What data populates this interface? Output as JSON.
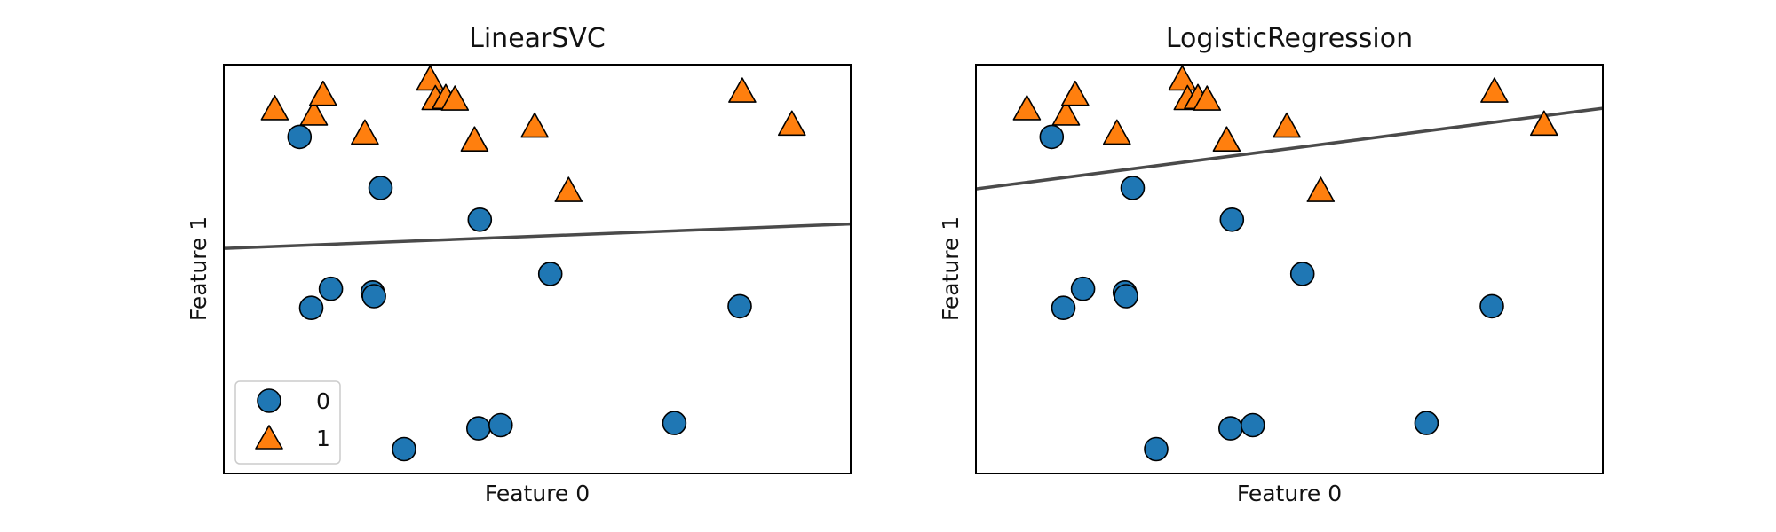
{
  "chart_data": [
    {
      "type": "scatter",
      "title": "LinearSVC",
      "xlabel": "Feature 0",
      "ylabel": "Feature 1",
      "xlim": [
        7.6,
        12.4
      ],
      "ylim": [
        -1.4,
        6.3
      ],
      "show_ticks": false,
      "grid": false,
      "decision_boundary": {
        "color": "#4a4a4a",
        "points": [
          [
            7.6,
            2.84
          ],
          [
            12.4,
            3.3
          ]
        ]
      },
      "legend": {
        "placement": "lower-left",
        "show": true
      },
      "series": [
        {
          "name": "0",
          "marker": "circle",
          "color": "#1f77b4",
          "points": [
            [
              8.18,
              4.94
            ],
            [
              8.27,
              1.72
            ],
            [
              8.42,
              2.08
            ],
            [
              8.74,
              2.01
            ],
            [
              8.75,
              1.94
            ],
            [
              8.8,
              3.98
            ],
            [
              8.98,
              -0.94
            ],
            [
              9.55,
              -0.55
            ],
            [
              9.56,
              3.38
            ],
            [
              9.72,
              -0.49
            ],
            [
              10.1,
              2.36
            ],
            [
              11.05,
              -0.45
            ],
            [
              11.55,
              1.75
            ]
          ]
        },
        {
          "name": "1",
          "marker": "triangle",
          "color": "#ff7f0e",
          "points": [
            [
              7.99,
              5.45
            ],
            [
              8.29,
              5.35
            ],
            [
              8.36,
              5.72
            ],
            [
              8.68,
              4.99
            ],
            [
              9.18,
              6.01
            ],
            [
              9.22,
              5.64
            ],
            [
              9.3,
              5.66
            ],
            [
              9.37,
              5.63
            ],
            [
              9.52,
              4.86
            ],
            [
              9.98,
              5.12
            ],
            [
              10.24,
              3.91
            ],
            [
              11.57,
              5.78
            ],
            [
              11.95,
              5.16
            ]
          ]
        }
      ]
    },
    {
      "type": "scatter",
      "title": "LogisticRegression",
      "xlabel": "Feature 0",
      "ylabel": "Feature 1",
      "xlim": [
        7.6,
        12.4
      ],
      "ylim": [
        -1.4,
        6.3
      ],
      "show_ticks": false,
      "grid": false,
      "decision_boundary": {
        "color": "#4a4a4a",
        "points": [
          [
            7.6,
            3.96
          ],
          [
            12.4,
            5.48
          ]
        ]
      },
      "legend": {
        "show": false
      },
      "series": [
        {
          "name": "0",
          "marker": "circle",
          "color": "#1f77b4",
          "points": [
            [
              8.18,
              4.94
            ],
            [
              8.27,
              1.72
            ],
            [
              8.42,
              2.08
            ],
            [
              8.74,
              2.01
            ],
            [
              8.75,
              1.94
            ],
            [
              8.8,
              3.98
            ],
            [
              8.98,
              -0.94
            ],
            [
              9.55,
              -0.55
            ],
            [
              9.56,
              3.38
            ],
            [
              9.72,
              -0.49
            ],
            [
              10.1,
              2.36
            ],
            [
              11.05,
              -0.45
            ],
            [
              11.55,
              1.75
            ]
          ]
        },
        {
          "name": "1",
          "marker": "triangle",
          "color": "#ff7f0e",
          "points": [
            [
              7.99,
              5.45
            ],
            [
              8.29,
              5.35
            ],
            [
              8.36,
              5.72
            ],
            [
              8.68,
              4.99
            ],
            [
              9.18,
              6.01
            ],
            [
              9.22,
              5.64
            ],
            [
              9.3,
              5.66
            ],
            [
              9.37,
              5.63
            ],
            [
              9.52,
              4.86
            ],
            [
              9.98,
              5.12
            ],
            [
              10.24,
              3.91
            ],
            [
              11.57,
              5.78
            ],
            [
              11.95,
              5.16
            ]
          ]
        }
      ]
    }
  ]
}
